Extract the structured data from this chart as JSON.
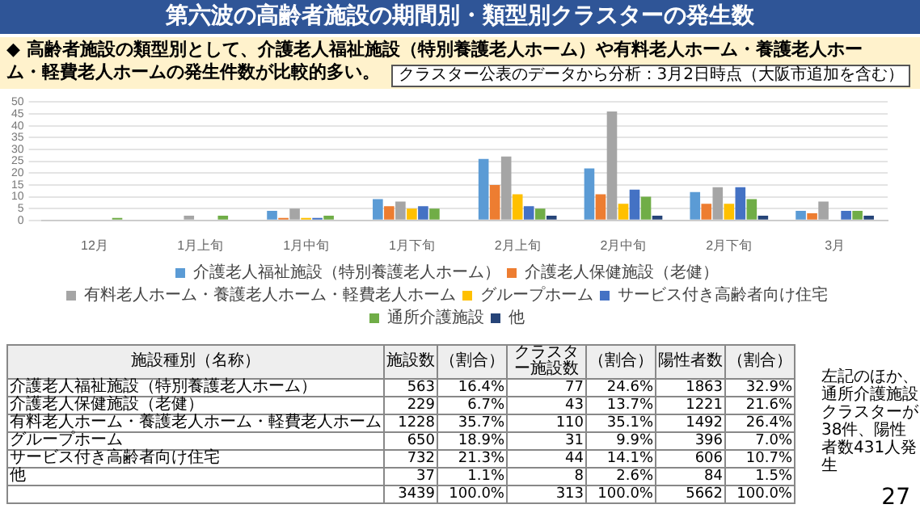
{
  "chart_data": [
    {
      "type": "bar",
      "title": "第六波の高齢者施設の期間別・類型別クラスターの発生数",
      "subtitle": "◆ 高齢者施設の類型別として、介護老人福祉施設（特別養護老人ホーム）や有料老人ホーム・養護老人ホーム・軽費老人ホームの発生件数が比較的多い。",
      "annotations": [
        "クラスター公表のデータから分析：3月2日時点（大阪市追加を含む）",
        "左記のほか、通所介護施設クラスターが38件、陽性者数431人発生",
        "27"
      ],
      "categories": [
        "12月",
        "1月上旬",
        "1月中旬",
        "1月下旬",
        "2月上旬",
        "2月中旬",
        "2月下旬",
        "3月"
      ],
      "series": [
        {
          "name": "介護老人福祉施設（特別養護老人ホーム）",
          "color": "#5b9bd5",
          "values": [
            0,
            0,
            4,
            9,
            26,
            22,
            12,
            4
          ]
        },
        {
          "name": "介護老人保健施設（老健）",
          "color": "#ed7d31",
          "values": [
            0,
            0,
            1,
            6,
            15,
            11,
            7,
            3
          ]
        },
        {
          "name": "有料老人ホーム・養護老人ホーム・軽費老人ホーム",
          "color": "#a5a5a5",
          "values": [
            0,
            2,
            5,
            8,
            27,
            46,
            14,
            8
          ]
        },
        {
          "name": "グループホーム",
          "color": "#ffc000",
          "values": [
            0,
            0,
            1,
            5,
            11,
            7,
            7,
            0
          ]
        },
        {
          "name": "サービス付き高齢者向け住宅",
          "color": "#4472c4",
          "values": [
            0,
            0,
            1,
            6,
            6,
            13,
            14,
            4
          ]
        },
        {
          "name": "通所介護施設",
          "color": "#70ad47",
          "values": [
            1,
            2,
            2,
            5,
            5,
            10,
            9,
            4
          ]
        },
        {
          "name": "他",
          "color": "#264478",
          "values": [
            0,
            0,
            0,
            0,
            2,
            2,
            2,
            2
          ]
        }
      ],
      "ylim": [
        0,
        50
      ],
      "yticks": [
        0,
        5,
        10,
        15,
        20,
        25,
        30,
        35,
        40,
        45,
        50
      ],
      "grid": "y",
      "legend": "bottom"
    },
    {
      "type": "other",
      "annotations": [
        "施設種別（名称）",
        "施設数",
        "（割合）",
        "クラスター施設数",
        "（割合）",
        "陽性者数",
        "（割合）",
        "介護老人福祉施設（特別養護老人ホーム）",
        "563",
        "16.4%",
        "77",
        "24.6%",
        "1863",
        "32.9%",
        "介護老人保健施設（老健）",
        "229",
        "6.7%",
        "43",
        "13.7%",
        "1221",
        "21.6%",
        "有料老人ホーム・養護老人ホーム・軽費老人ホーム",
        "1228",
        "35.7%",
        "110",
        "35.1%",
        "1492",
        "26.4%",
        "グループホーム",
        "650",
        "18.9%",
        "31",
        "9.9%",
        "396",
        "7.0%",
        "サービス付き高齢者向け住宅",
        "732",
        "21.3%",
        "44",
        "14.1%",
        "606",
        "10.7%",
        "他",
        "37",
        "1.1%",
        "8",
        "2.6%",
        "84",
        "1.5%",
        null,
        "3439",
        "100.0%",
        "313",
        "100.0%",
        "5662",
        "100.0%"
      ]
    }
  ]
}
